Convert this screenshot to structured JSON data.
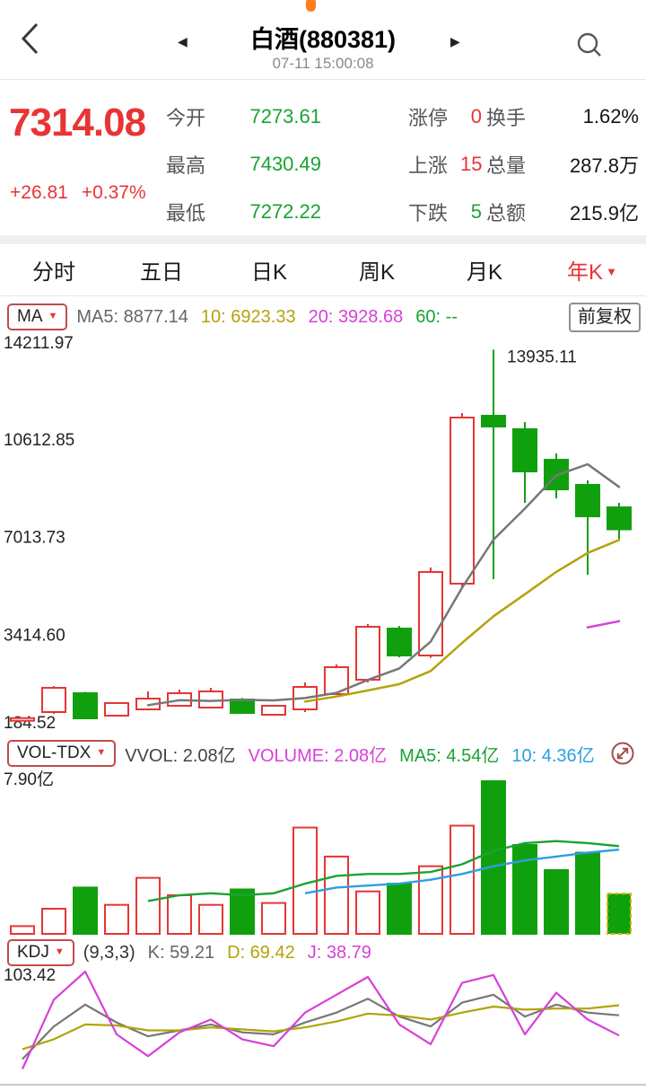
{
  "icons": {
    "prev_triangle": "◀",
    "next_triangle": "▶",
    "caret_down": "▼",
    "search": "search-icon",
    "back": "back-chevron-icon",
    "expand": "expand-icon"
  },
  "colors": {
    "red": "#e73535",
    "green_candle": "#11a00d",
    "green_text": "#1aa334",
    "magenta": "#d840d8",
    "olive": "#b3a30b",
    "blue": "#2b9fe0",
    "accent_orange": "#ff7d1a"
  },
  "header": {
    "title": "白酒(880381)",
    "timestamp": "07-11 15:00:08"
  },
  "quote": {
    "price": "7314.08",
    "change": "+26.81",
    "change_pct": "+0.37%",
    "stats": [
      {
        "label": "今开",
        "value": "7273.61",
        "color": "green"
      },
      {
        "label": "涨停",
        "value": "0",
        "color": "red"
      },
      {
        "label": "换手",
        "value": "1.62%",
        "color": "black"
      },
      {
        "label": "最高",
        "value": "7430.49",
        "color": "green"
      },
      {
        "label": "上涨",
        "value": "15",
        "color": "red"
      },
      {
        "label": "总量",
        "value": "287.8万",
        "color": "black"
      },
      {
        "label": "最低",
        "value": "7272.22",
        "color": "green"
      },
      {
        "label": "下跌",
        "value": "5",
        "color": "green"
      },
      {
        "label": "总额",
        "value": "215.9亿",
        "color": "black"
      }
    ]
  },
  "tabs": {
    "labels": [
      "分时",
      "五日",
      "日K",
      "周K",
      "月K",
      "年K"
    ],
    "active_index": 5
  },
  "panels": {
    "ma": {
      "button": "MA",
      "items": [
        {
          "text": "MA5: 8877.14",
          "color": "#666666"
        },
        {
          "text": "10: 6923.33",
          "color": "#b3a30b"
        },
        {
          "text": "20: 3928.68",
          "color": "#d840d8"
        },
        {
          "text": "60: --",
          "color": "#1aa334"
        }
      ],
      "right_button": "前复权"
    },
    "vol": {
      "button": "VOL-TDX",
      "items": [
        {
          "text": "VVOL: 2.08亿",
          "color": "#444444"
        },
        {
          "text": "VOLUME: 2.08亿",
          "color": "#d840d8"
        },
        {
          "text": "MA5: 4.54亿",
          "color": "#1aa334"
        },
        {
          "text": "10: 4.36亿",
          "color": "#2b9fe0"
        }
      ]
    },
    "kdj": {
      "button": "KDJ",
      "items": [
        {
          "text": "(9,3,3)",
          "color": "#333333"
        },
        {
          "text": "K: 59.21",
          "color": "#666666"
        },
        {
          "text": "D: 69.42",
          "color": "#b3a30b"
        },
        {
          "text": "J: 38.79",
          "color": "#d840d8"
        }
      ]
    }
  },
  "chart_data": [
    {
      "type": "candlestick",
      "name": "price-yearly-k",
      "period": "年K",
      "ylim": [
        184.52,
        14211.97
      ],
      "y_ticks": [
        "14211.97",
        "10612.85",
        "7013.73",
        "3414.60",
        "184.52"
      ],
      "up_color": "#e73535",
      "down_color": "#11a00d",
      "annotation": {
        "text": "13935.11",
        "index": 15
      },
      "candles": [
        [
          300,
          380,
          280,
          360
        ],
        [
          582,
          1542,
          515,
          1476
        ],
        [
          1277,
          1320,
          330,
          350
        ],
        [
          450,
          940,
          430,
          913
        ],
        [
          681,
          1343,
          660,
          1078
        ],
        [
          813,
          1410,
          795,
          1277
        ],
        [
          747,
          1476,
          730,
          1343
        ],
        [
          1045,
          1100,
          520,
          548
        ],
        [
          483,
          830,
          465,
          813
        ],
        [
          681,
          1674,
          583,
          1509
        ],
        [
          1244,
          2335,
          1210,
          2236
        ],
        [
          1773,
          3824,
          1674,
          3725
        ],
        [
          3659,
          3750,
          2600,
          2666
        ],
        [
          2666,
          5908,
          2580,
          5743
        ],
        [
          5313,
          11599,
          5148,
          11433
        ],
        [
          11499,
          13935.11,
          5478,
          11102
        ],
        [
          11003,
          11268,
          8290,
          9448
        ],
        [
          9878,
          10109,
          8456,
          8787
        ],
        [
          8952,
          9117,
          5644,
          7794
        ],
        [
          8125,
          8290,
          6968,
          7314.08
        ]
      ],
      "ma_lines": [
        {
          "name": "MA5",
          "color": "#777777",
          "values": [
            null,
            null,
            null,
            null,
            835,
            1019,
            992,
            1032,
            1012,
            1098,
            1290,
            1766,
            2190,
            3176,
            5161,
            6934,
            8078,
            9303,
            9713,
            8877.14
          ]
        },
        {
          "name": "MA10",
          "color": "#b3a30b",
          "values": [
            null,
            null,
            null,
            null,
            null,
            null,
            null,
            null,
            null,
            967,
            1154,
            1379,
            1611,
            2094,
            3129,
            4112,
            4922,
            5746,
            6444,
            6923.33
          ]
        },
        {
          "name": "MA20",
          "color": "#d840d8",
          "values": [
            null,
            null,
            null,
            null,
            null,
            null,
            null,
            null,
            null,
            null,
            null,
            null,
            null,
            null,
            null,
            null,
            null,
            null,
            3700,
            3928.68
          ]
        }
      ]
    },
    {
      "type": "bar",
      "name": "volume",
      "unit": "亿",
      "ylim": [
        0,
        7.9
      ],
      "top_label": "7.90亿",
      "values": [
        0.4,
        1.3,
        2.4,
        1.5,
        2.9,
        2.0,
        1.5,
        2.3,
        1.6,
        5.5,
        4.0,
        2.2,
        2.6,
        3.5,
        5.6,
        7.9,
        4.6,
        3.3,
        4.2,
        2.08
      ],
      "ma_lines": [
        {
          "name": "MA5",
          "color": "#1aa334",
          "values": [
            null,
            null,
            null,
            null,
            1.7,
            2.0,
            2.1,
            2.0,
            2.1,
            2.6,
            3.0,
            3.1,
            3.1,
            3.2,
            3.6,
            4.3,
            4.7,
            4.8,
            4.7,
            4.54
          ]
        },
        {
          "name": "MA10",
          "color": "#2b9fe0",
          "values": [
            null,
            null,
            null,
            null,
            null,
            null,
            null,
            null,
            null,
            2.1,
            2.4,
            2.5,
            2.6,
            2.8,
            3.1,
            3.5,
            3.8,
            4.0,
            4.2,
            4.36
          ]
        }
      ],
      "last_bar_dashed": true
    },
    {
      "type": "line",
      "name": "kdj",
      "ylim": [
        0,
        103.42
      ],
      "top_label": "103.42",
      "series": [
        {
          "name": "K",
          "color": "#777777",
          "values": [
            15,
            48,
            70,
            52,
            38,
            44,
            50,
            42,
            40,
            52,
            62,
            76,
            58,
            48,
            72,
            80,
            58,
            70,
            62,
            59.21
          ]
        },
        {
          "name": "D",
          "color": "#b3a30b",
          "values": [
            25,
            35,
            50,
            49,
            44,
            44,
            47,
            45,
            43,
            47,
            53,
            61,
            59,
            55,
            62,
            68,
            65,
            66,
            66,
            69.42
          ]
        },
        {
          "name": "J",
          "color": "#d840d8",
          "values": [
            5,
            75,
            103.42,
            40,
            18,
            42,
            55,
            35,
            28,
            62,
            80,
            98,
            50,
            30,
            92,
            100,
            40,
            82,
            55,
            38.79
          ]
        }
      ]
    }
  ]
}
